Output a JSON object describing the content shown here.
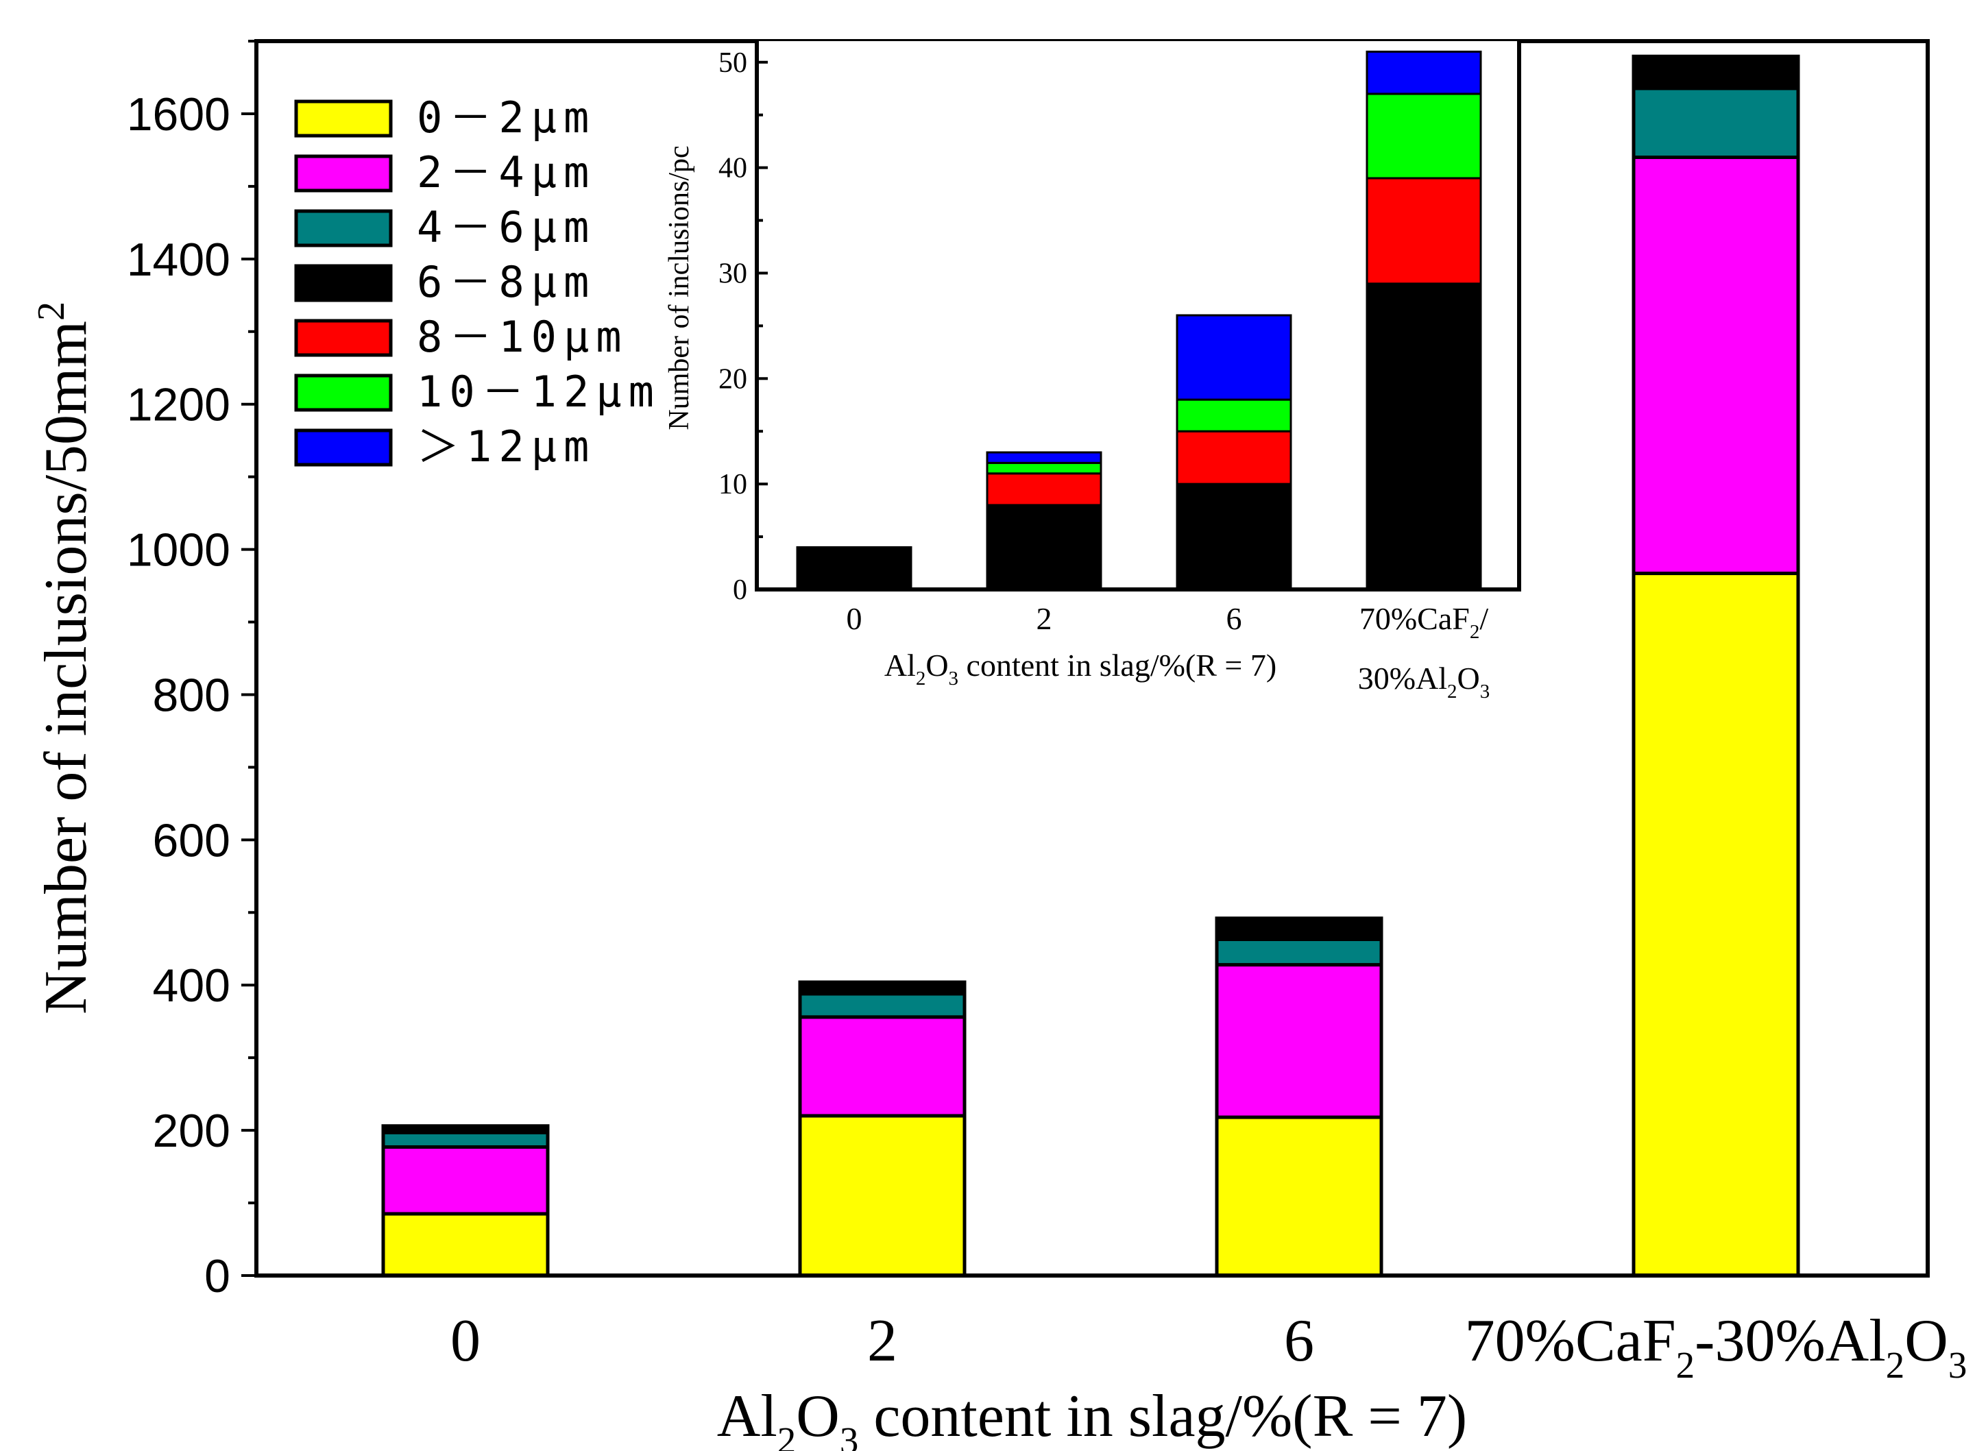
{
  "chart_data": [
    {
      "type": "bar",
      "stacked": true,
      "title": "",
      "xlabel_parts": [
        "Al",
        "2",
        "O",
        "3",
        " content in slag/%(R = 7)"
      ],
      "ylabel": "Number of inclusions/50mm",
      "ylabel_sup": "2",
      "ylim": [
        0,
        1700
      ],
      "yticks": [
        "0",
        "200",
        "400",
        "600",
        "800",
        "1000",
        "1200",
        "1400",
        "1600"
      ],
      "categories": [
        "0",
        "2",
        "6",
        "70%CaF2-30%Al2O3"
      ],
      "category_labels": [
        {
          "parts": [
            "0"
          ]
        },
        {
          "parts": [
            "2"
          ]
        },
        {
          "parts": [
            "6"
          ]
        },
        {
          "parts": [
            "70%CaF",
            "2",
            "-30%Al",
            "2",
            "O",
            "3"
          ]
        }
      ],
      "legend_position": "top-left",
      "series": [
        {
          "name": "0－2μm",
          "color": "#ffff00",
          "values": [
            85,
            220,
            218,
            967
          ]
        },
        {
          "name": "2－4μm",
          "color": "#ff00ff",
          "values": [
            92,
            136,
            210,
            573
          ]
        },
        {
          "name": "4－6μm",
          "color": "#008080",
          "values": [
            20,
            32,
            35,
            95
          ]
        },
        {
          "name": "6－8μm",
          "color": "#000000",
          "values": [
            9,
            16,
            25,
            37
          ]
        },
        {
          "name": "8－10μm",
          "color": "#ff0000",
          "values": [
            0,
            0,
            0,
            3
          ]
        },
        {
          "name": "10－12μm",
          "color": "#00ff00",
          "values": [
            0,
            0,
            0,
            2
          ]
        },
        {
          "name": "＞12μm",
          "color": "#0000ff",
          "values": [
            0,
            0,
            4,
            2
          ]
        }
      ]
    },
    {
      "type": "bar",
      "stacked": true,
      "inset": true,
      "title": "",
      "xlabel_parts": [
        "Al",
        "2",
        "O",
        "3",
        " content in slag/%(R = 7)"
      ],
      "ylabel": "Number of inclusions/pc",
      "ylim": [
        0,
        52
      ],
      "yticks": [
        "0",
        "10",
        "20",
        "30",
        "40",
        "50"
      ],
      "categories": [
        "0",
        "2",
        "6",
        "70%CaF2/30%Al2O3"
      ],
      "category_labels": [
        {
          "line1": [
            "0"
          ]
        },
        {
          "line1": [
            "2"
          ]
        },
        {
          "line1": [
            "6"
          ]
        },
        {
          "line1": [
            "70%CaF",
            "2",
            "/"
          ],
          "line2": [
            "30%Al",
            "2",
            "O",
            "3"
          ]
        }
      ],
      "series": [
        {
          "name": "6－8μm",
          "color": "#000000",
          "values": [
            4,
            8,
            10,
            29
          ]
        },
        {
          "name": "8－10μm",
          "color": "#ff0000",
          "values": [
            0,
            3,
            5,
            10
          ]
        },
        {
          "name": "10－12μm",
          "color": "#00ff00",
          "values": [
            0,
            1,
            3,
            8
          ]
        },
        {
          "name": "＞12μm",
          "color": "#0000ff",
          "values": [
            0,
            1,
            8,
            4
          ]
        }
      ]
    }
  ]
}
